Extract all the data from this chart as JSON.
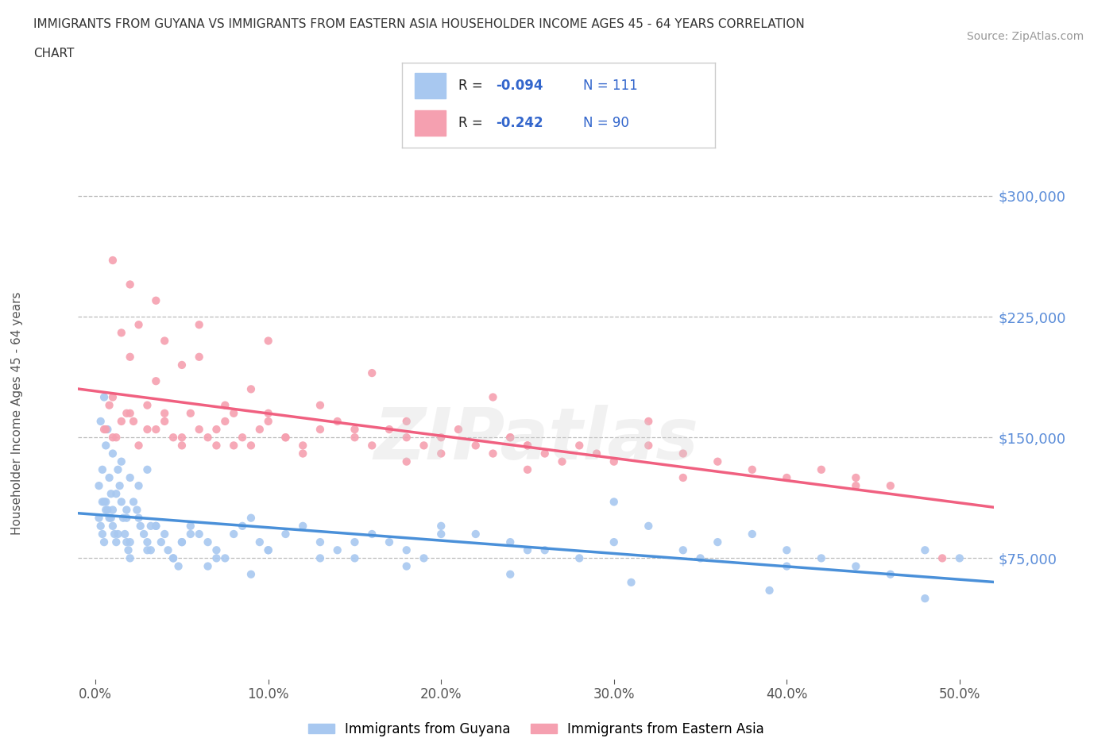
{
  "title_line1": "IMMIGRANTS FROM GUYANA VS IMMIGRANTS FROM EASTERN ASIA HOUSEHOLDER INCOME AGES 45 - 64 YEARS CORRELATION",
  "title_line2": "CHART",
  "source_text": "Source: ZipAtlas.com",
  "ylabel": "Householder Income Ages 45 - 64 years",
  "xlabel_ticks": [
    "0.0%",
    "10.0%",
    "20.0%",
    "30.0%",
    "40.0%",
    "50.0%"
  ],
  "xlabel_vals": [
    0.0,
    10.0,
    20.0,
    30.0,
    40.0,
    50.0
  ],
  "ytick_vals": [
    75000,
    150000,
    225000,
    300000
  ],
  "ytick_labels": [
    "$75,000",
    "$150,000",
    "$225,000",
    "$300,000"
  ],
  "ylim": [
    0,
    330000
  ],
  "xlim": [
    -1,
    52
  ],
  "watermark": "ZIPatlas",
  "guyana_color": "#a8c8f0",
  "eastern_asia_color": "#f5a0b0",
  "guyana_line_color": "#4a90d9",
  "eastern_asia_line_color": "#f06080",
  "legend_R_guyana": "-0.094",
  "legend_N_guyana": "111",
  "legend_R_eastern": "-0.242",
  "legend_N_eastern": "90",
  "legend_label_guyana": "Immigrants from Guyana",
  "legend_label_eastern": "Immigrants from Eastern Asia",
  "guyana_x": [
    0.2,
    0.3,
    0.4,
    0.5,
    0.6,
    0.7,
    0.8,
    0.9,
    1.0,
    1.1,
    1.2,
    1.3,
    1.4,
    1.5,
    1.6,
    1.7,
    1.8,
    1.9,
    2.0,
    2.2,
    2.4,
    2.6,
    2.8,
    3.0,
    3.2,
    3.5,
    3.8,
    4.0,
    4.2,
    4.5,
    4.8,
    5.0,
    5.5,
    6.0,
    6.5,
    7.0,
    7.5,
    8.0,
    8.5,
    9.0,
    9.5,
    10.0,
    11.0,
    12.0,
    13.0,
    14.0,
    15.0,
    16.0,
    17.0,
    18.0,
    19.0,
    20.0,
    22.0,
    24.0,
    26.0,
    28.0,
    30.0,
    32.0,
    34.0,
    36.0,
    38.0,
    40.0,
    42.0,
    44.0,
    46.0,
    48.0,
    50.0,
    0.3,
    0.5,
    0.7,
    1.0,
    1.5,
    2.0,
    2.5,
    3.0,
    0.4,
    0.6,
    0.8,
    1.2,
    1.8,
    2.5,
    3.5,
    5.0,
    7.0,
    10.0,
    15.0,
    20.0,
    25.0,
    30.0,
    35.0,
    40.0,
    0.2,
    0.4,
    0.6,
    0.9,
    1.3,
    2.0,
    3.0,
    4.5,
    6.5,
    9.0,
    13.0,
    18.0,
    24.0,
    31.0,
    39.0,
    48.0,
    0.5,
    1.0,
    1.8,
    3.2,
    5.5
  ],
  "guyana_y": [
    100000,
    95000,
    90000,
    85000,
    110000,
    105000,
    100000,
    115000,
    95000,
    90000,
    85000,
    130000,
    120000,
    110000,
    100000,
    90000,
    85000,
    80000,
    75000,
    110000,
    105000,
    95000,
    90000,
    85000,
    80000,
    95000,
    85000,
    90000,
    80000,
    75000,
    70000,
    85000,
    95000,
    90000,
    85000,
    80000,
    75000,
    90000,
    95000,
    100000,
    85000,
    80000,
    90000,
    95000,
    85000,
    80000,
    75000,
    90000,
    85000,
    80000,
    75000,
    95000,
    90000,
    85000,
    80000,
    75000,
    110000,
    95000,
    80000,
    85000,
    90000,
    80000,
    75000,
    70000,
    65000,
    80000,
    75000,
    160000,
    175000,
    155000,
    140000,
    135000,
    125000,
    120000,
    130000,
    130000,
    145000,
    125000,
    115000,
    105000,
    100000,
    95000,
    85000,
    75000,
    80000,
    85000,
    90000,
    80000,
    85000,
    75000,
    70000,
    120000,
    110000,
    105000,
    100000,
    90000,
    85000,
    80000,
    75000,
    70000,
    65000,
    75000,
    70000,
    65000,
    60000,
    55000,
    50000,
    110000,
    105000,
    100000,
    95000,
    90000
  ],
  "eastern_x": [
    0.5,
    1.0,
    1.5,
    2.0,
    2.5,
    3.0,
    3.5,
    4.0,
    4.5,
    5.0,
    5.5,
    6.0,
    6.5,
    7.0,
    7.5,
    8.0,
    8.5,
    9.0,
    9.5,
    10.0,
    11.0,
    12.0,
    13.0,
    14.0,
    15.0,
    16.0,
    17.0,
    18.0,
    19.0,
    20.0,
    21.0,
    22.0,
    23.0,
    24.0,
    25.0,
    26.0,
    27.0,
    28.0,
    29.0,
    30.0,
    32.0,
    34.0,
    36.0,
    38.0,
    40.0,
    42.0,
    44.0,
    46.0,
    49.0,
    1.0,
    2.0,
    3.5,
    5.0,
    7.5,
    10.0,
    15.0,
    20.0,
    25.0,
    1.5,
    2.5,
    4.0,
    6.0,
    9.0,
    13.0,
    18.0,
    24.0,
    1.0,
    2.0,
    3.5,
    6.0,
    10.0,
    16.0,
    23.0,
    32.0,
    0.8,
    1.8,
    3.0,
    5.0,
    8.0,
    12.0,
    18.0,
    25.0,
    34.0,
    44.0,
    0.6,
    1.2,
    2.2,
    4.0,
    7.0,
    11.0
  ],
  "eastern_y": [
    155000,
    150000,
    160000,
    165000,
    145000,
    170000,
    155000,
    160000,
    150000,
    145000,
    165000,
    155000,
    150000,
    145000,
    160000,
    165000,
    150000,
    145000,
    155000,
    160000,
    150000,
    145000,
    155000,
    160000,
    150000,
    145000,
    155000,
    150000,
    145000,
    140000,
    155000,
    145000,
    140000,
    150000,
    145000,
    140000,
    135000,
    145000,
    140000,
    135000,
    145000,
    140000,
    135000,
    130000,
    125000,
    130000,
    125000,
    120000,
    75000,
    175000,
    200000,
    185000,
    195000,
    170000,
    165000,
    155000,
    150000,
    145000,
    215000,
    220000,
    210000,
    200000,
    180000,
    170000,
    160000,
    150000,
    260000,
    245000,
    235000,
    220000,
    210000,
    190000,
    175000,
    160000,
    170000,
    165000,
    155000,
    150000,
    145000,
    140000,
    135000,
    130000,
    125000,
    120000,
    155000,
    150000,
    160000,
    165000,
    155000,
    150000
  ]
}
